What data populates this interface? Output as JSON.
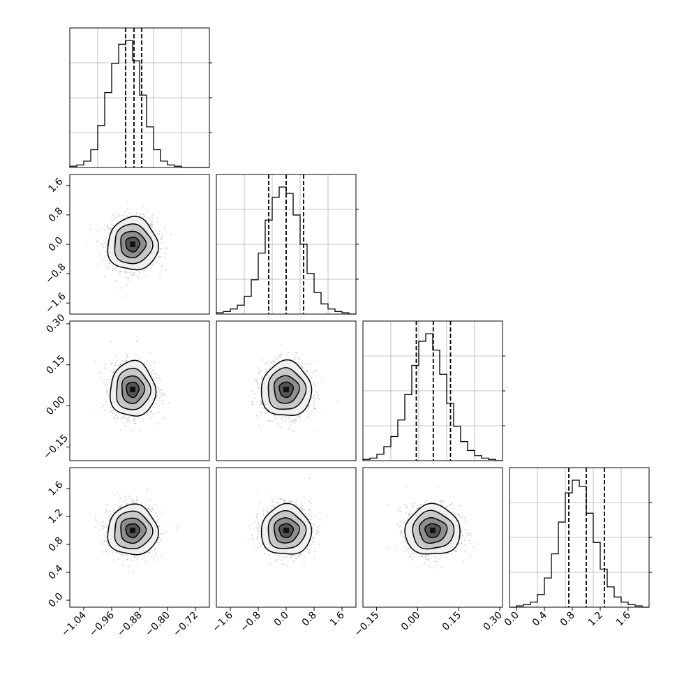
{
  "figure": {
    "title": "",
    "parameters": [
      "",
      "",
      "",
      ""
    ]
  },
  "colors": {
    "line": "#000000",
    "grid": "#b0b0b0",
    "points": "#9a9a9a",
    "background": "#ffffff"
  },
  "chart_data": [
    {
      "type": "histogram",
      "param": 0,
      "xlim": [
        -1.08,
        -0.68
      ],
      "bin_width": 0.02,
      "counts": [
        1,
        2,
        5,
        14,
        33,
        59,
        82,
        97,
        100,
        84,
        57,
        32,
        14,
        5,
        2,
        1,
        0,
        0,
        0,
        0
      ],
      "quantiles": [
        -0.92,
        -0.896,
        -0.874
      ],
      "grid": true
    },
    {
      "type": "scatter-contour",
      "row": 1,
      "col": 0,
      "x_param": 0,
      "y_param": 1,
      "xlim": [
        -1.08,
        -0.68
      ],
      "ylim": [
        -1.9,
        1.9
      ],
      "xticks": [],
      "yticks": [
        "-1.6",
        "-0.8",
        "0.0",
        "0.8",
        "1.6"
      ],
      "yticks_values": [
        -1.6,
        -0.8,
        0.0,
        0.8,
        1.6
      ],
      "center": [
        -0.9,
        0.0
      ],
      "spread": [
        0.05,
        0.5
      ]
    },
    {
      "type": "histogram",
      "param": 1,
      "xlim": [
        -2.0,
        2.0
      ],
      "bin_width": 0.2,
      "counts": [
        1,
        2,
        4,
        7,
        14,
        27,
        48,
        74,
        92,
        100,
        95,
        78,
        55,
        32,
        17,
        8,
        4,
        2,
        1,
        0
      ],
      "quantiles": [
        -0.5,
        0.0,
        0.5
      ],
      "grid": true
    },
    {
      "type": "scatter-contour",
      "row": 2,
      "col": 0,
      "x_param": 0,
      "y_param": 2,
      "xlim": [
        -1.08,
        -0.68
      ],
      "ylim": [
        -0.2,
        0.31
      ],
      "xticks": [],
      "yticks": [
        "-0.15",
        "0.00",
        "0.15",
        "0.30"
      ],
      "yticks_values": [
        -0.15,
        0.0,
        0.15,
        0.3
      ],
      "center": [
        -0.9,
        0.06
      ],
      "spread": [
        0.045,
        0.07
      ]
    },
    {
      "type": "scatter-contour",
      "row": 2,
      "col": 1,
      "x_param": 1,
      "y_param": 2,
      "xlim": [
        -2.0,
        2.0
      ],
      "ylim": [
        -0.2,
        0.31
      ],
      "xticks": [],
      "yticks": [],
      "center": [
        0.0,
        0.06
      ],
      "spread": [
        0.5,
        0.07
      ]
    },
    {
      "type": "histogram",
      "param": 2,
      "xlim": [
        -0.2,
        0.31
      ],
      "bin_width": 0.0255,
      "counts": [
        1,
        2,
        5,
        11,
        19,
        32,
        52,
        75,
        94,
        100,
        87,
        68,
        45,
        27,
        15,
        8,
        4,
        2,
        1,
        0
      ],
      "quantiles": [
        -0.005,
        0.057,
        0.12
      ],
      "grid": true
    },
    {
      "type": "scatter-contour",
      "row": 3,
      "col": 0,
      "x_param": 0,
      "y_param": 3,
      "xlim": [
        -1.08,
        -0.68
      ],
      "ylim": [
        -0.1,
        1.9
      ],
      "xticks": [
        "-1.04",
        "-0.96",
        "-0.88",
        "-0.80",
        "-0.72"
      ],
      "xticks_values": [
        -1.04,
        -0.96,
        -0.88,
        -0.8,
        -0.72
      ],
      "yticks": [
        "0.0",
        "0.4",
        "0.8",
        "1.2",
        "1.6"
      ],
      "yticks_values": [
        0.0,
        0.4,
        0.8,
        1.2,
        1.6
      ],
      "center": [
        -0.9,
        1.0
      ],
      "spread": [
        0.05,
        0.25
      ]
    },
    {
      "type": "scatter-contour",
      "row": 3,
      "col": 1,
      "x_param": 1,
      "y_param": 3,
      "xlim": [
        -2.0,
        2.0
      ],
      "ylim": [
        -0.1,
        1.9
      ],
      "xticks": [
        "-1.6",
        "-0.8",
        "0.0",
        "0.8",
        "1.6"
      ],
      "xticks_values": [
        -1.6,
        -0.8,
        0.0,
        0.8,
        1.6
      ],
      "yticks": [],
      "center": [
        0.0,
        1.0
      ],
      "spread": [
        0.5,
        0.25
      ]
    },
    {
      "type": "scatter-contour",
      "row": 3,
      "col": 2,
      "x_param": 2,
      "y_param": 3,
      "xlim": [
        -0.2,
        0.31
      ],
      "ylim": [
        -0.1,
        1.9
      ],
      "xticks": [
        "-0.15",
        "0.00",
        "0.15",
        "0.30"
      ],
      "xticks_values": [
        -0.15,
        0.0,
        0.15,
        0.3
      ],
      "yticks": [],
      "center": [
        0.055,
        1.0
      ],
      "spread": [
        0.07,
        0.25
      ]
    },
    {
      "type": "histogram",
      "param": 3,
      "xlim": [
        -0.1,
        1.9
      ],
      "xticks": [
        "0.0",
        "0.4",
        "0.8",
        "1.2",
        "1.6"
      ],
      "xticks_values": [
        0.0,
        0.4,
        0.8,
        1.2,
        1.6
      ],
      "bin_width": 0.1,
      "counts": [
        0,
        1,
        2,
        4,
        10,
        23,
        42,
        67,
        90,
        100,
        95,
        74,
        51,
        30,
        16,
        8,
        4,
        2,
        1,
        0
      ],
      "quantiles": [
        0.75,
        1.0,
        1.26
      ],
      "grid": true
    }
  ]
}
